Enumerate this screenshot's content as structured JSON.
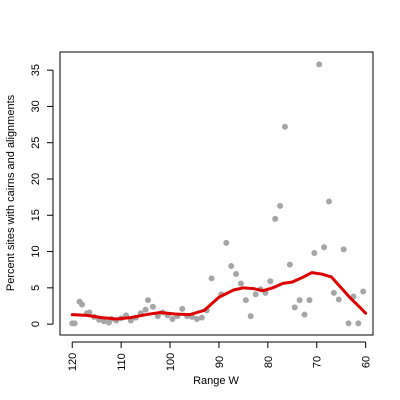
{
  "chart_data": {
    "type": "scatter",
    "title": "",
    "xlabel": "Range W",
    "ylabel": "Percent sites with cairns and alignments",
    "x_reversed": true,
    "xlim": [
      122.5,
      58.5
    ],
    "ylim": [
      -1.5,
      37.5
    ],
    "xticks": [
      120,
      110,
      100,
      90,
      80,
      70,
      60
    ],
    "yticks": [
      0,
      5,
      10,
      15,
      20,
      25,
      30,
      35
    ],
    "grid": false,
    "legend": "none",
    "point_color": "#a6a6a6",
    "line_color": "#dd0000",
    "points": [
      {
        "x": 120,
        "y": 0.1
      },
      {
        "x": 119.5,
        "y": 0.1
      },
      {
        "x": 118.5,
        "y": 3.1
      },
      {
        "x": 118,
        "y": 2.7
      },
      {
        "x": 117,
        "y": 1.5
      },
      {
        "x": 116.5,
        "y": 1.6
      },
      {
        "x": 115.5,
        "y": 1.0
      },
      {
        "x": 114.5,
        "y": 0.6
      },
      {
        "x": 113.5,
        "y": 0.4
      },
      {
        "x": 112.5,
        "y": 0.2
      },
      {
        "x": 112,
        "y": 0.7
      },
      {
        "x": 111,
        "y": 0.5
      },
      {
        "x": 110,
        "y": 0.8
      },
      {
        "x": 109,
        "y": 1.2
      },
      {
        "x": 108,
        "y": 0.5
      },
      {
        "x": 107,
        "y": 0.9
      },
      {
        "x": 106,
        "y": 1.5
      },
      {
        "x": 105,
        "y": 2.0
      },
      {
        "x": 104.5,
        "y": 3.3
      },
      {
        "x": 103.5,
        "y": 2.4
      },
      {
        "x": 102.5,
        "y": 1.1
      },
      {
        "x": 101.5,
        "y": 1.6
      },
      {
        "x": 100.5,
        "y": 1.2
      },
      {
        "x": 99.5,
        "y": 0.7
      },
      {
        "x": 98.5,
        "y": 1.1
      },
      {
        "x": 97.5,
        "y": 2.1
      },
      {
        "x": 96.5,
        "y": 1.1
      },
      {
        "x": 95.5,
        "y": 1.0
      },
      {
        "x": 94.5,
        "y": 0.7
      },
      {
        "x": 93.5,
        "y": 0.9
      },
      {
        "x": 92.5,
        "y": 1.9
      },
      {
        "x": 91.5,
        "y": 6.3
      },
      {
        "x": 89.5,
        "y": 4.1
      },
      {
        "x": 88.5,
        "y": 11.2
      },
      {
        "x": 87.5,
        "y": 8.0
      },
      {
        "x": 86.5,
        "y": 6.9
      },
      {
        "x": 85.5,
        "y": 5.6
      },
      {
        "x": 84.5,
        "y": 3.3
      },
      {
        "x": 83.5,
        "y": 1.1
      },
      {
        "x": 82.5,
        "y": 4.1
      },
      {
        "x": 81.5,
        "y": 4.8
      },
      {
        "x": 80.5,
        "y": 4.3
      },
      {
        "x": 79.5,
        "y": 5.9
      },
      {
        "x": 78.5,
        "y": 14.5
      },
      {
        "x": 77.5,
        "y": 16.3
      },
      {
        "x": 76.5,
        "y": 27.2
      },
      {
        "x": 75.5,
        "y": 8.2
      },
      {
        "x": 74.5,
        "y": 2.3
      },
      {
        "x": 73.5,
        "y": 3.3
      },
      {
        "x": 72.5,
        "y": 1.3
      },
      {
        "x": 71.5,
        "y": 3.3
      },
      {
        "x": 70.5,
        "y": 9.8
      },
      {
        "x": 69.5,
        "y": 35.8
      },
      {
        "x": 68.5,
        "y": 10.6
      },
      {
        "x": 67.5,
        "y": 16.9
      },
      {
        "x": 66.5,
        "y": 4.3
      },
      {
        "x": 65.5,
        "y": 3.4
      },
      {
        "x": 64.5,
        "y": 10.3
      },
      {
        "x": 63.5,
        "y": 0.1
      },
      {
        "x": 62.5,
        "y": 3.8
      },
      {
        "x": 61.5,
        "y": 0.1
      },
      {
        "x": 60.5,
        "y": 4.5
      }
    ],
    "smooth_line": {
      "x": [
        120,
        117,
        114,
        111,
        108,
        105,
        102,
        99,
        96,
        93,
        90,
        87,
        85,
        83,
        81,
        79,
        77,
        75,
        73,
        71,
        69,
        67,
        65,
        63,
        61,
        60
      ],
      "y": [
        1.3,
        1.2,
        0.9,
        0.7,
        0.9,
        1.3,
        1.6,
        1.4,
        1.3,
        1.9,
        3.7,
        4.7,
        5.0,
        4.9,
        4.6,
        5.0,
        5.6,
        5.8,
        6.4,
        7.1,
        6.9,
        6.5,
        5.0,
        3.5,
        2.2,
        1.5
      ]
    }
  }
}
